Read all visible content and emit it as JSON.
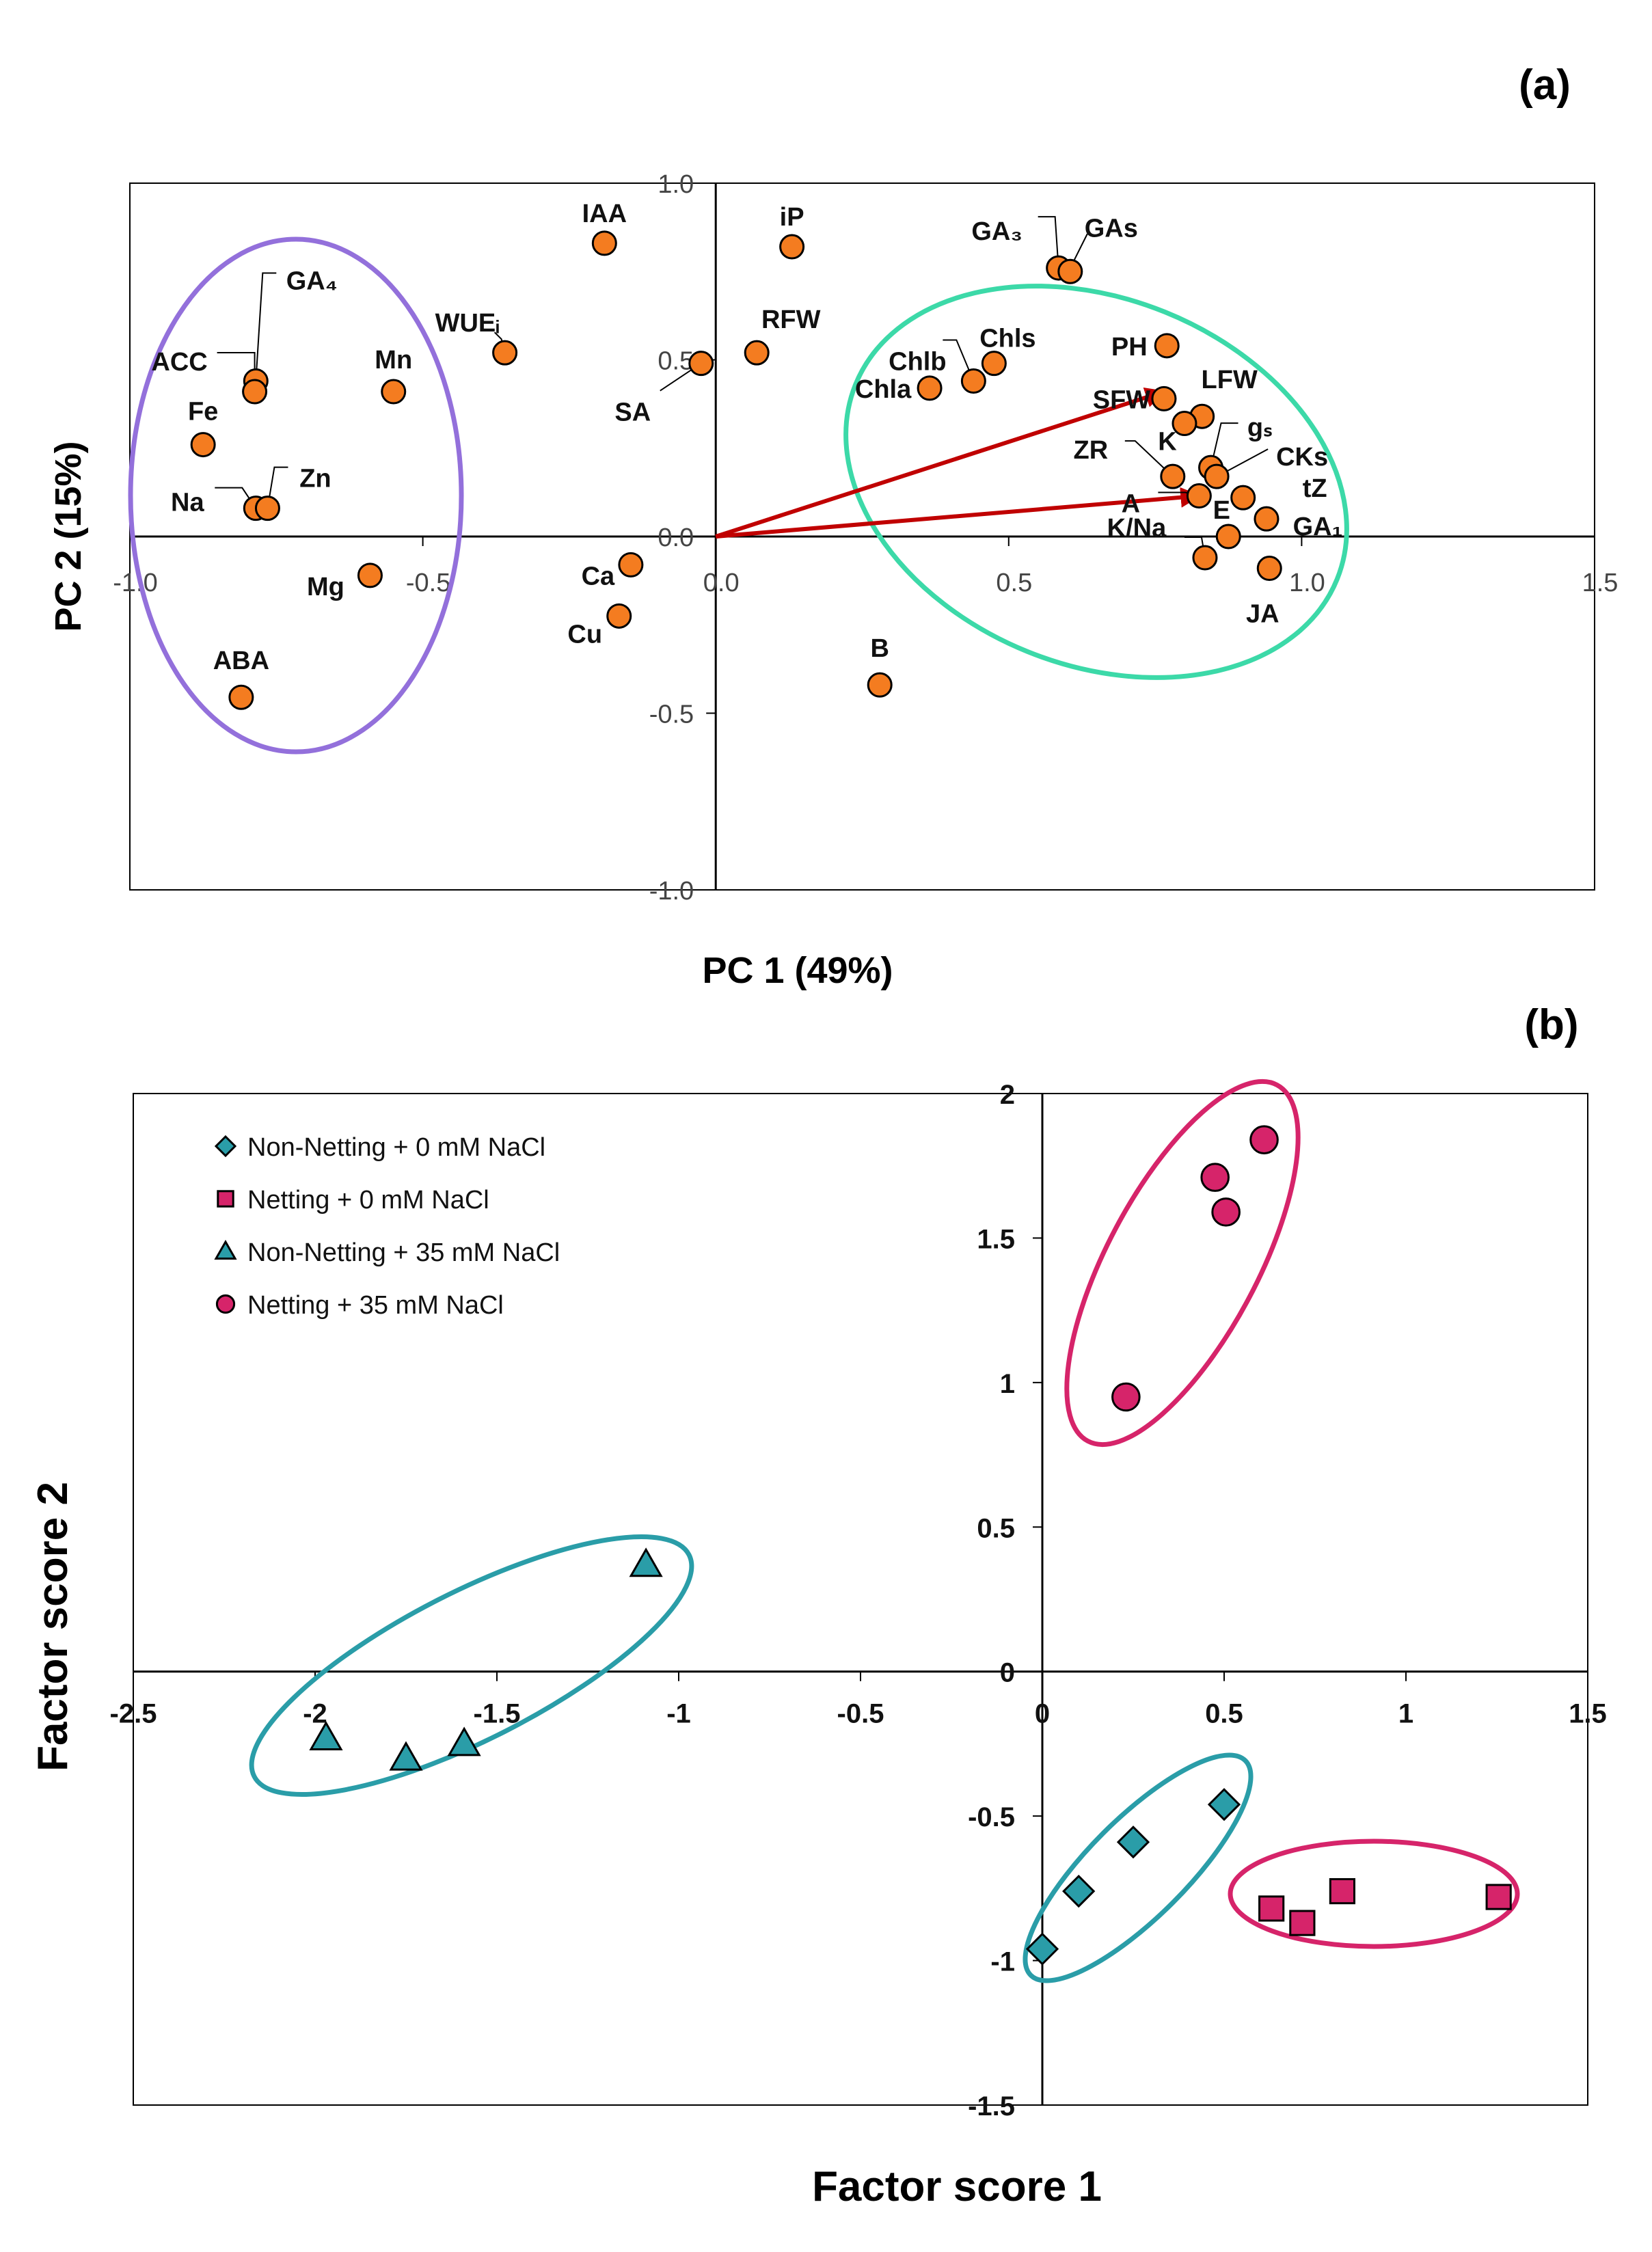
{
  "chart_data": [
    {
      "type": "scatter",
      "panel_label": "(a)",
      "title": "",
      "xlabel": "PC 1 (49%)",
      "ylabel": "PC 2 (15%)",
      "xlim": [
        -1.0,
        1.5
      ],
      "ylim": [
        -1.0,
        1.0
      ],
      "x_ticks": [
        "-1.0",
        "-0.5",
        "0.0",
        "0.5",
        "1.0",
        "1.5"
      ],
      "y_ticks": [
        "1.0",
        "0.5",
        "0.0",
        "-0.5",
        "-1.0"
      ],
      "grid": false,
      "colors": {
        "marker": "#F47C20",
        "arrow": "#C00000",
        "group_left": "#9370DB",
        "group_right": "#3CD9A8"
      },
      "points": [
        {
          "label": "IAA",
          "x": -0.19,
          "y": 0.83
        },
        {
          "label": "iP",
          "x": 0.13,
          "y": 0.82
        },
        {
          "label": "GA₃",
          "x": 0.585,
          "y": 0.76
        },
        {
          "label": "GAs",
          "x": 0.605,
          "y": 0.75
        },
        {
          "label": "GA₄",
          "x": -0.785,
          "y": 0.44
        },
        {
          "label": "ACC",
          "x": -0.787,
          "y": 0.41
        },
        {
          "label": "WUEᵢ",
          "x": -0.36,
          "y": 0.52
        },
        {
          "label": "Mn",
          "x": -0.55,
          "y": 0.41
        },
        {
          "label": "RFW",
          "x": 0.07,
          "y": 0.52
        },
        {
          "label": "SA",
          "x": -0.025,
          "y": 0.49
        },
        {
          "label": "Chlb",
          "x": 0.44,
          "y": 0.44
        },
        {
          "label": "Chls",
          "x": 0.475,
          "y": 0.49
        },
        {
          "label": "Chla",
          "x": 0.365,
          "y": 0.42
        },
        {
          "label": "PH",
          "x": 0.77,
          "y": 0.54
        },
        {
          "label": "SFW",
          "x": 0.765,
          "y": 0.39
        },
        {
          "label": "LFW",
          "x": 0.83,
          "y": 0.34
        },
        {
          "label": "K",
          "x": 0.8,
          "y": 0.32
        },
        {
          "label": "gₛ",
          "x": 0.845,
          "y": 0.195
        },
        {
          "label": "CKs",
          "x": 0.855,
          "y": 0.17
        },
        {
          "label": "ZR",
          "x": 0.78,
          "y": 0.17
        },
        {
          "label": "A",
          "x": 0.825,
          "y": 0.115
        },
        {
          "label": "tZ",
          "x": 0.9,
          "y": 0.11
        },
        {
          "label": "GA₁",
          "x": 0.94,
          "y": 0.05
        },
        {
          "label": "K/Na",
          "x": 0.835,
          "y": -0.06
        },
        {
          "label": "E",
          "x": 0.875,
          "y": 0.0
        },
        {
          "label": "JA",
          "x": 0.945,
          "y": -0.09
        },
        {
          "label": "Fe",
          "x": -0.875,
          "y": 0.26
        },
        {
          "label": "Na",
          "x": -0.785,
          "y": 0.08
        },
        {
          "label": "Zn",
          "x": -0.765,
          "y": 0.08
        },
        {
          "label": "Mg",
          "x": -0.59,
          "y": -0.11
        },
        {
          "label": "Ca",
          "x": -0.145,
          "y": -0.08
        },
        {
          "label": "Cu",
          "x": -0.165,
          "y": -0.225
        },
        {
          "label": "B",
          "x": 0.28,
          "y": -0.42
        },
        {
          "label": "ABA",
          "x": -0.81,
          "y": -0.455
        }
      ],
      "arrows": [
        {
          "from": [
            0,
            0
          ],
          "to": [
            0.765,
            0.41
          ]
        },
        {
          "from": [
            0,
            0
          ],
          "to": [
            0.825,
            0.115
          ]
        }
      ]
    },
    {
      "type": "scatter",
      "panel_label": "(b)",
      "title": "",
      "xlabel": "Factor score 1",
      "ylabel": "Factor score 2",
      "xlim": [
        -2.5,
        1.5
      ],
      "ylim": [
        -1.5,
        2.0
      ],
      "x_ticks": [
        "-2.5",
        "-2",
        "-1.5",
        "-1",
        "-0.5",
        "0",
        "0.5",
        "1",
        "1.5"
      ],
      "y_ticks": [
        "2",
        "1.5",
        "1",
        "0.5",
        "0",
        "-0.5",
        "-1",
        "-1.5"
      ],
      "grid": false,
      "legend_position": "top-left",
      "series": [
        {
          "name": "Non-Netting + 0 mM NaCl",
          "marker": "diamond",
          "color": "#2A9DA8",
          "points": [
            [
              0.0,
              -0.96
            ],
            [
              0.1,
              -0.76
            ],
            [
              0.25,
              -0.59
            ],
            [
              0.5,
              -0.46
            ]
          ]
        },
        {
          "name": "Netting + 0 mM NaCl",
          "marker": "square",
          "color": "#D6246A",
          "points": [
            [
              0.63,
              -0.82
            ],
            [
              0.715,
              -0.87
            ],
            [
              0.825,
              -0.76
            ],
            [
              1.255,
              -0.78
            ]
          ]
        },
        {
          "name": "Non-Netting + 35 mM NaCl",
          "marker": "triangle",
          "color": "#2A9DA8",
          "points": [
            [
              -1.97,
              -0.23
            ],
            [
              -1.75,
              -0.3
            ],
            [
              -1.59,
              -0.25
            ],
            [
              -1.09,
              0.37
            ]
          ]
        },
        {
          "name": "Netting + 35 mM NaCl",
          "marker": "circle",
          "color": "#D6246A",
          "points": [
            [
              0.23,
              0.95
            ],
            [
              0.475,
              1.71
            ],
            [
              0.505,
              1.59
            ],
            [
              0.61,
              1.84
            ]
          ]
        }
      ]
    }
  ]
}
